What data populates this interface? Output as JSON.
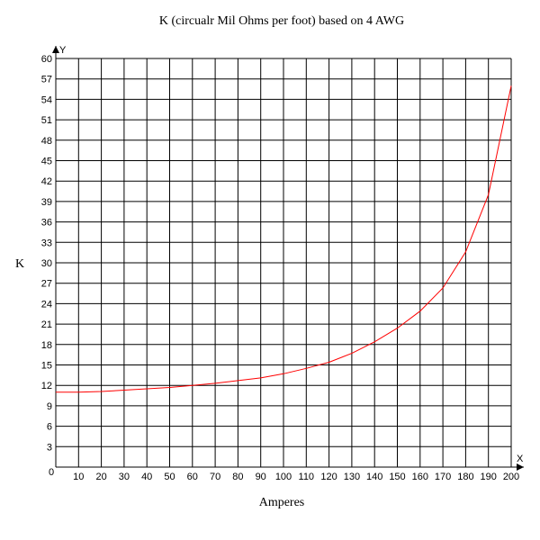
{
  "chart_data": {
    "type": "line",
    "title": "K (circualr Mil Ohms per foot) based on 4 AWG",
    "xlabel": "Amperes",
    "ylabel": "K",
    "x_axis_letter": "X",
    "y_axis_letter": "Y",
    "origin_label": "0",
    "xlim": [
      0,
      200
    ],
    "ylim": [
      0,
      60
    ],
    "x_ticks": [
      10,
      20,
      30,
      40,
      50,
      60,
      70,
      80,
      90,
      100,
      110,
      120,
      130,
      140,
      150,
      160,
      170,
      180,
      190,
      200
    ],
    "y_ticks": [
      3,
      6,
      9,
      12,
      15,
      18,
      21,
      24,
      27,
      30,
      33,
      36,
      39,
      42,
      45,
      48,
      51,
      54,
      57,
      60
    ],
    "grid": true,
    "series": [
      {
        "color": "#ff0000",
        "x": [
          0,
          10,
          20,
          30,
          40,
          50,
          60,
          70,
          80,
          90,
          100,
          110,
          120,
          130,
          140,
          150,
          160,
          170,
          180,
          190,
          200
        ],
        "y": [
          11.0,
          11.0,
          11.1,
          11.3,
          11.5,
          11.7,
          12.0,
          12.3,
          12.7,
          13.1,
          13.7,
          14.5,
          15.4,
          16.7,
          18.4,
          20.4,
          22.9,
          26.3,
          31.6,
          40.0,
          56.0
        ]
      }
    ]
  }
}
